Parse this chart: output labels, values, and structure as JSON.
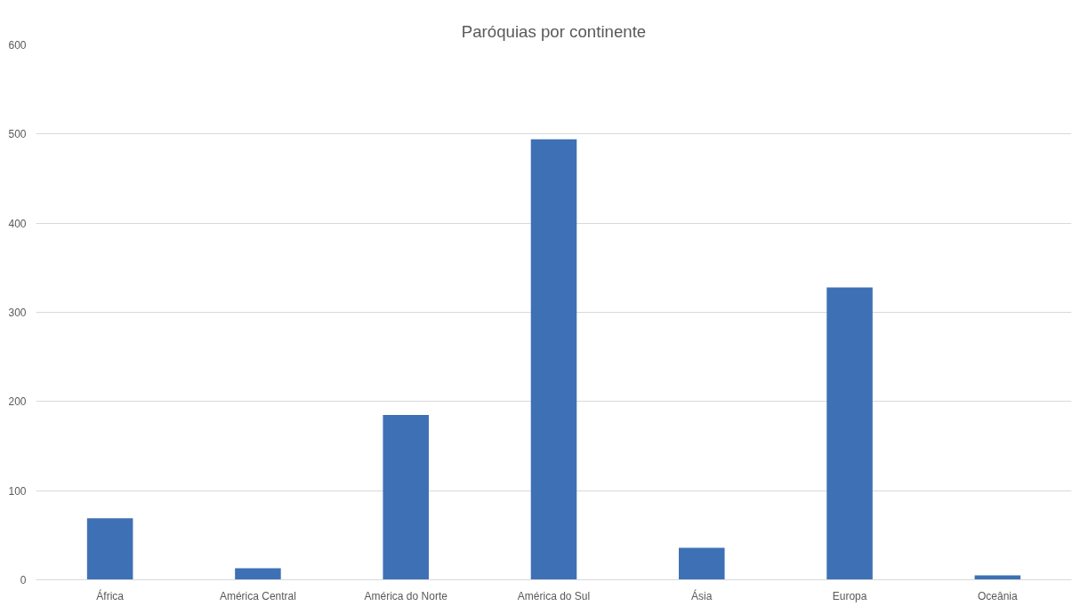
{
  "chart_data": {
    "type": "bar",
    "title": "Paróquias por continente",
    "categories": [
      "África",
      "América Central",
      "América do Norte",
      "América do Sul",
      "Ásia",
      "Europa",
      "Oceânia"
    ],
    "values": [
      69,
      13,
      185,
      494,
      36,
      328,
      5
    ],
    "color": "#3e70b6",
    "ylim": [
      0,
      600
    ],
    "yticks": [
      0,
      100,
      200,
      300,
      400,
      500,
      600
    ],
    "grid": "y"
  }
}
